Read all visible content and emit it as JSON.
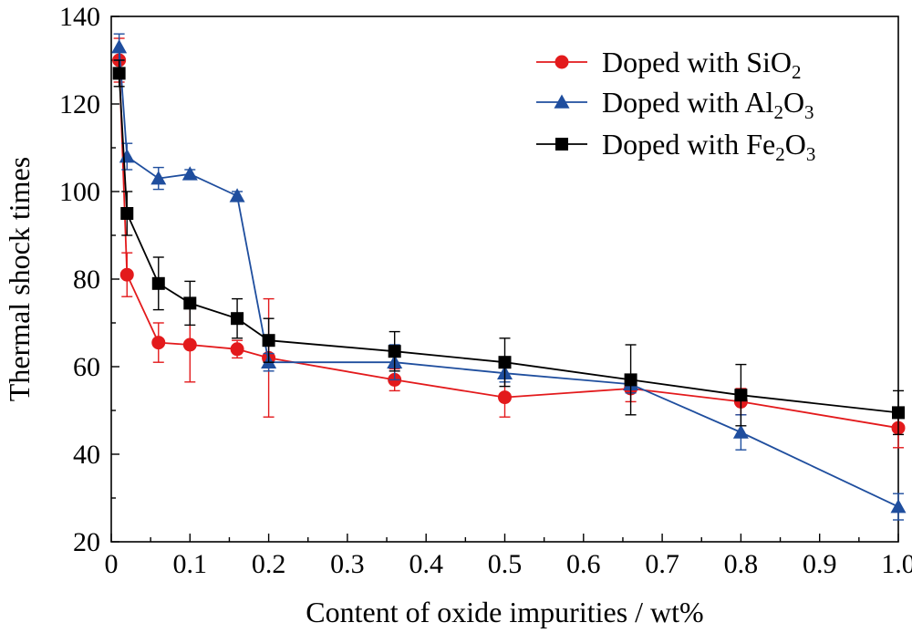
{
  "chart_data": {
    "type": "line",
    "xlabel": "Content of oxide impurities / wt%",
    "ylabel": "Thermal shock times",
    "xlim": [
      0,
      1.0
    ],
    "ylim": [
      20,
      140
    ],
    "x_ticks": [
      "0",
      "0.1",
      "0.2",
      "0.3",
      "0.4",
      "0.5",
      "0.6",
      "0.7",
      "0.8",
      "0.9",
      "1.0"
    ],
    "y_ticks": [
      "20",
      "40",
      "60",
      "80",
      "100",
      "120",
      "140"
    ],
    "grid": false,
    "legend_position": "top-right",
    "series": [
      {
        "name": "Doped with SiO2",
        "legend_parts": [
          {
            "t": "Doped with SiO"
          },
          {
            "t": "2",
            "sub": true
          }
        ],
        "color": "#e31a1c",
        "marker": "circle",
        "x": [
          0.01,
          0.02,
          0.06,
          0.1,
          0.16,
          0.2,
          0.36,
          0.5,
          0.66,
          0.8,
          1.0
        ],
        "y": [
          130,
          81,
          65.5,
          65,
          64,
          62,
          57,
          53,
          55,
          52,
          46
        ],
        "err": [
          5,
          5,
          4.5,
          8.5,
          2,
          13.5,
          2.5,
          4.5,
          3,
          3,
          4.5
        ]
      },
      {
        "name": "Doped with Al2O3",
        "legend_parts": [
          {
            "t": "Doped with Al"
          },
          {
            "t": "2",
            "sub": true
          },
          {
            "t": "O"
          },
          {
            "t": "3",
            "sub": true
          }
        ],
        "color": "#1f4e9e",
        "marker": "triangle",
        "x": [
          0.01,
          0.02,
          0.06,
          0.1,
          0.16,
          0.2,
          0.36,
          0.5,
          0.66,
          0.8,
          1.0
        ],
        "y": [
          133,
          108,
          103,
          104,
          99,
          61,
          61,
          58.5,
          56,
          45,
          28
        ],
        "err": [
          3,
          3,
          2.5,
          1,
          1,
          2,
          4,
          2,
          2,
          4,
          3
        ]
      },
      {
        "name": "Doped with Fe2O3",
        "legend_parts": [
          {
            "t": "Doped with Fe"
          },
          {
            "t": "2",
            "sub": true
          },
          {
            "t": "O"
          },
          {
            "t": "3",
            "sub": true
          }
        ],
        "color": "#000000",
        "marker": "square",
        "x": [
          0.01,
          0.02,
          0.06,
          0.1,
          0.16,
          0.2,
          0.36,
          0.5,
          0.66,
          0.8,
          1.0
        ],
        "y": [
          127,
          95,
          79,
          74.5,
          71,
          66,
          63.5,
          61,
          57,
          53.5,
          49.5
        ],
        "err": [
          3,
          5,
          6,
          5,
          4.5,
          5,
          4.5,
          5.5,
          8,
          7,
          5
        ]
      }
    ]
  }
}
